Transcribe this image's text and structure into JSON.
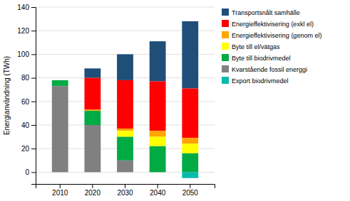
{
  "chart_data": {
    "type": "bar",
    "stacked": true,
    "ylabel": "Energianvändning (TWh)",
    "categories": [
      "2010",
      "2020",
      "2030",
      "2040",
      "2050"
    ],
    "series": [
      {
        "name": "Transportsnålt samhälle",
        "color": "#1F4E79",
        "values": [
          0,
          8,
          22,
          34,
          57
        ]
      },
      {
        "name": "Energieffektivisering (exkl el)",
        "color": "#FF0000",
        "values": [
          0,
          27,
          41,
          42,
          42
        ]
      },
      {
        "name": "Energieffektivisering (genom el)",
        "color": "#FFA500",
        "values": [
          0,
          1,
          2,
          5,
          5
        ]
      },
      {
        "name": "Byte till el/vätgas",
        "color": "#FFFF00",
        "values": [
          0,
          0,
          5,
          8,
          8
        ]
      },
      {
        "name": "Byte till biodrivmedel",
        "color": "#00AA44",
        "values": [
          5,
          12,
          20,
          22,
          16
        ]
      },
      {
        "name": "Kvarstående fossil energgi",
        "color": "#808080",
        "values": [
          73,
          40,
          10,
          0,
          0
        ]
      },
      {
        "name": "Export biodrivmedel",
        "color": "#00BBAA",
        "values": [
          0,
          0,
          0,
          0,
          -5
        ]
      }
    ],
    "ylim": [
      -10,
      140
    ],
    "yticks": [
      0,
      20,
      40,
      60,
      80,
      100,
      120,
      140
    ],
    "grid": true,
    "legend": "right"
  }
}
